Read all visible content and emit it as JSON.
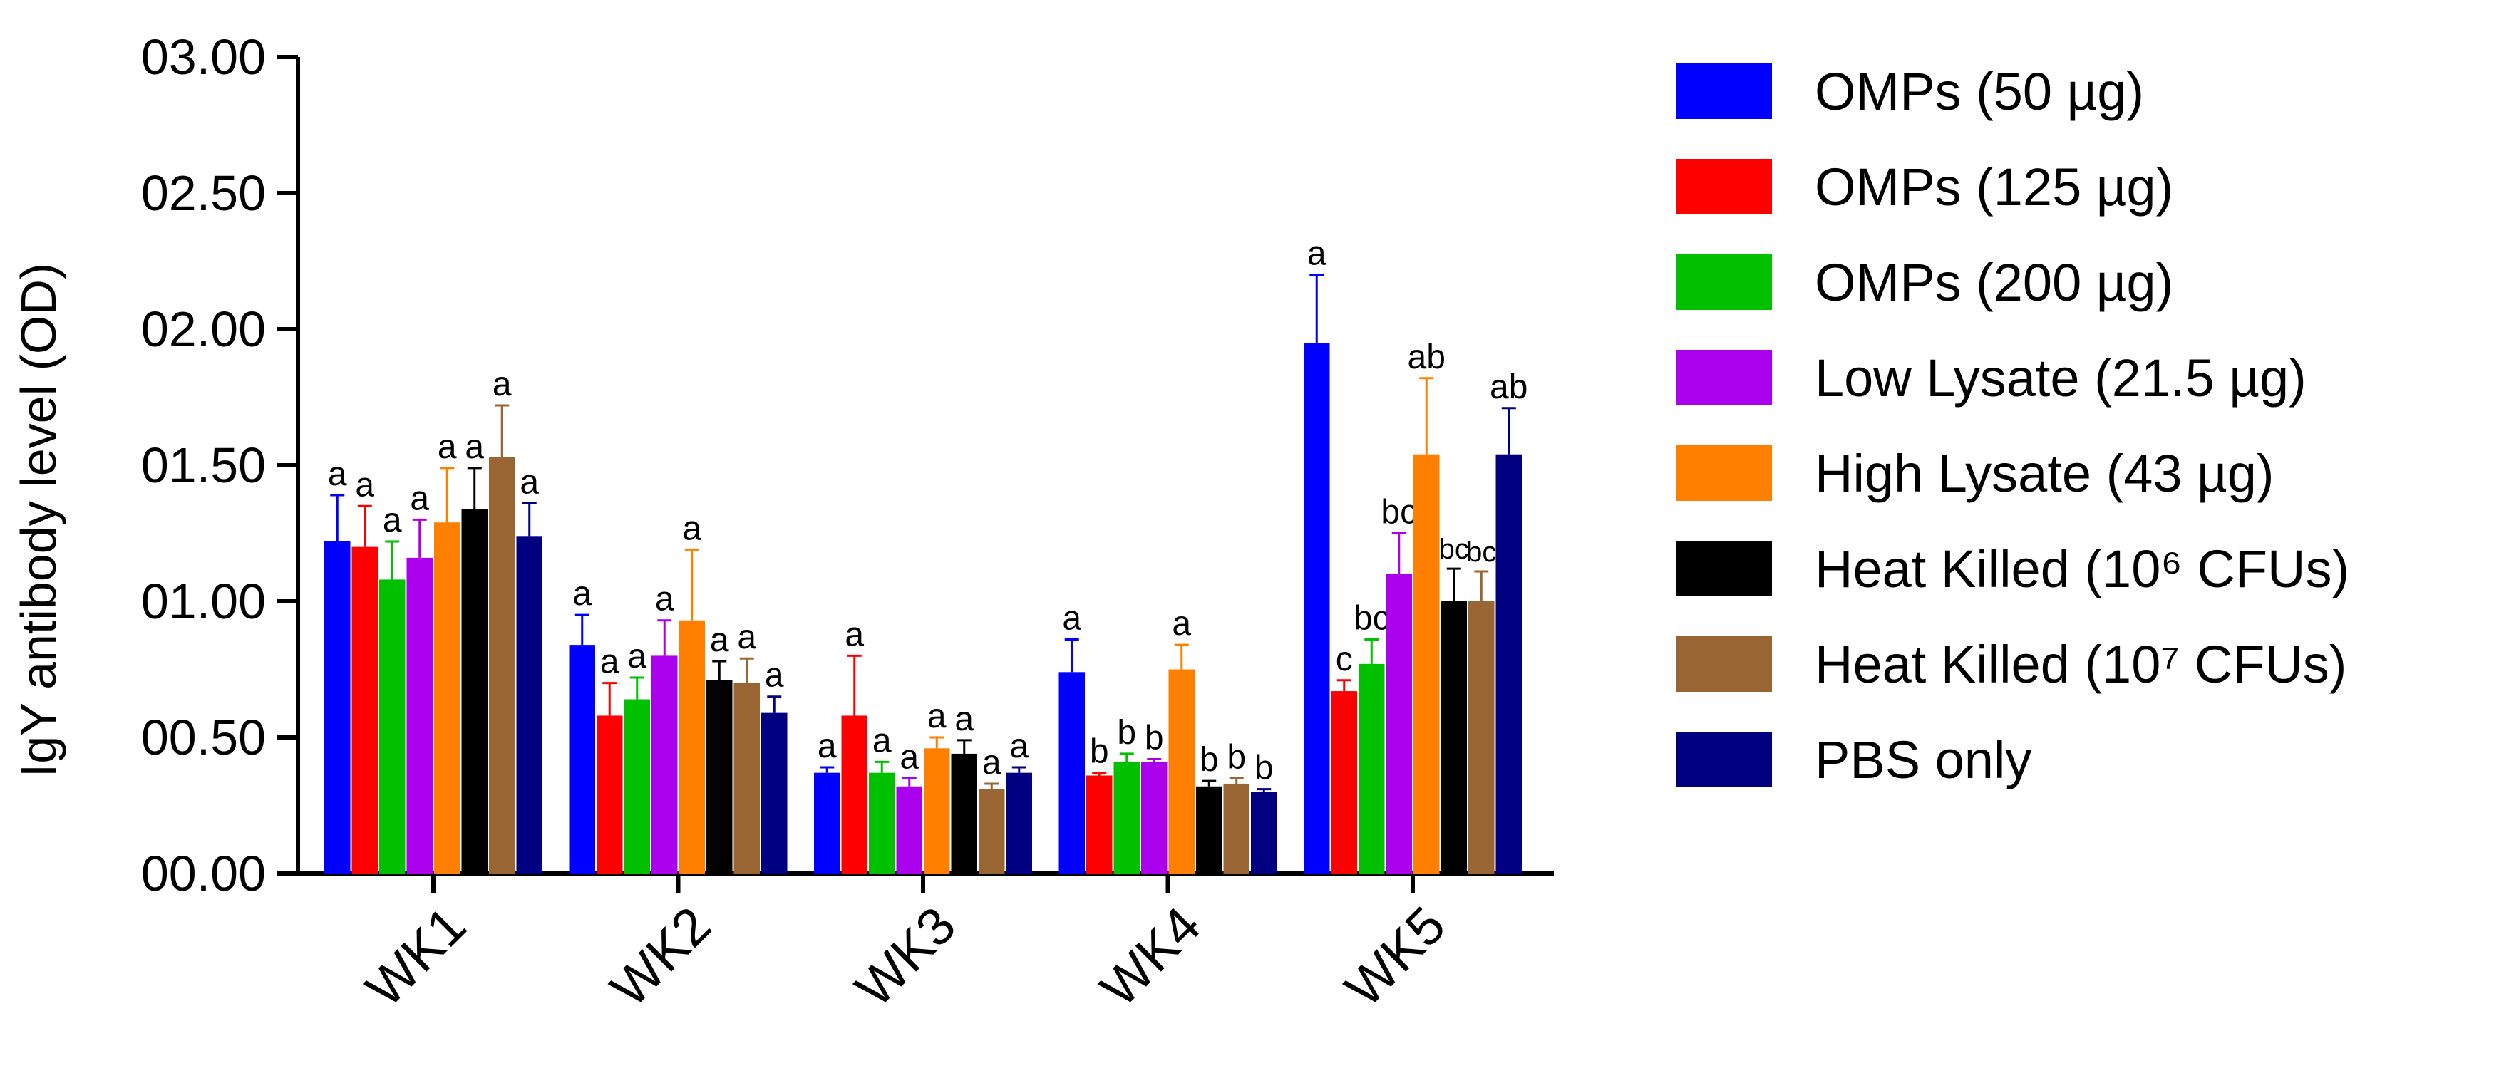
{
  "chart_data": {
    "type": "bar",
    "title": "",
    "xlabel": "",
    "ylabel": "IgY antibody level (OD)",
    "ylim": [
      0,
      3
    ],
    "yticks": [
      0,
      0.5,
      1,
      1.5,
      2,
      2.5,
      3
    ],
    "ytick_labels": [
      "00.00",
      "00.50",
      "01.00",
      "01.50",
      "02.00",
      "02.50",
      "03.00"
    ],
    "categories": [
      "WK1",
      "WK2",
      "WK3",
      "WK4",
      "WK5"
    ],
    "grid": false,
    "legend_position": "right",
    "series": [
      {
        "name": "OMPs (50 µg)",
        "color": "#0000ff",
        "values": [
          1.22,
          0.84,
          0.37,
          0.74,
          1.95
        ],
        "errors": [
          0.17,
          0.11,
          0.02,
          0.12,
          0.25
        ],
        "letters": [
          "a",
          "a",
          "a",
          "a",
          "a"
        ]
      },
      {
        "name": "OMPs (125 µg)",
        "color": "#ff0000",
        "values": [
          1.2,
          0.58,
          0.58,
          0.36,
          0.67
        ],
        "errors": [
          0.15,
          0.12,
          0.22,
          0.01,
          0.04
        ],
        "letters": [
          "a",
          "a",
          "a",
          "b",
          "c"
        ]
      },
      {
        "name": "OMPs (200 µg)",
        "color": "#00c000",
        "values": [
          1.08,
          0.64,
          0.37,
          0.41,
          0.77
        ],
        "errors": [
          0.14,
          0.08,
          0.04,
          0.03,
          0.09
        ],
        "letters": [
          "a",
          "a",
          "a",
          "b",
          "bc"
        ]
      },
      {
        "name": "Low Lysate (21.5 µg)",
        "color": "#aa00ee",
        "values": [
          1.16,
          0.8,
          0.32,
          0.41,
          1.1
        ],
        "errors": [
          0.14,
          0.13,
          0.03,
          0.01,
          0.15
        ],
        "letters": [
          "a",
          "a",
          "a",
          "b",
          "bc"
        ]
      },
      {
        "name": "High Lysate (43 µg)",
        "color": "#ff8000",
        "values": [
          1.29,
          0.93,
          0.46,
          0.75,
          1.54
        ],
        "errors": [
          0.2,
          0.26,
          0.04,
          0.09,
          0.28
        ],
        "letters": [
          "a",
          "a",
          "a",
          "a",
          "ab"
        ]
      },
      {
        "name": "Heat Killed (10⁶ CFUs)",
        "color": "#000000",
        "values": [
          1.34,
          0.71,
          0.44,
          0.32,
          1.0
        ],
        "errors": [
          0.15,
          0.07,
          0.05,
          0.02,
          0.12
        ],
        "letters": [
          "a",
          "a",
          "a",
          "b",
          "bc"
        ]
      },
      {
        "name": "Heat Killed (10⁷ CFUs)",
        "color": "#996633",
        "values": [
          1.53,
          0.7,
          0.31,
          0.33,
          1.0
        ],
        "errors": [
          0.19,
          0.09,
          0.02,
          0.02,
          0.11
        ],
        "letters": [
          "a",
          "a",
          "a",
          "b",
          "bc"
        ]
      },
      {
        "name": "PBS only",
        "color": "#000080",
        "values": [
          1.24,
          0.59,
          0.37,
          0.3,
          1.54
        ],
        "errors": [
          0.12,
          0.06,
          0.02,
          0.01,
          0.17
        ],
        "letters": [
          "a",
          "a",
          "a",
          "b",
          "ab"
        ]
      }
    ]
  }
}
